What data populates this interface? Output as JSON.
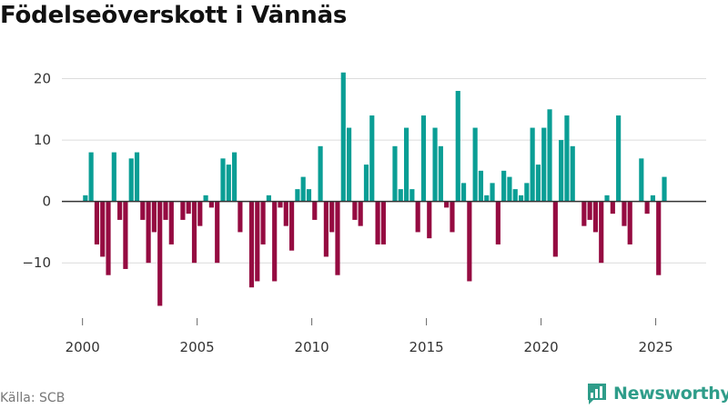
{
  "header": {
    "title": "Födelseöverskott i Vännäs"
  },
  "footer": {
    "source": "Källa: SCB",
    "brand": "Newsworthy"
  },
  "colors": {
    "positive": "#0a9e95",
    "negative": "#950b41",
    "grid": "#dcdcdc",
    "zero": "#333333",
    "brand": "#2f9d8a"
  },
  "chart_data": {
    "type": "bar",
    "title": "Födelseöverskott i Vännäs",
    "xlabel": "",
    "ylabel": "",
    "ylim": [
      -19,
      22
    ],
    "xlim": [
      1999.1,
      2027.2
    ],
    "yticks": [
      -10,
      0,
      10,
      20
    ],
    "ytick_labels": [
      "−10",
      "0",
      "10",
      "20"
    ],
    "xticks": [
      2000,
      2005,
      2010,
      2015,
      2020,
      2025
    ],
    "xtick_labels": [
      "2000",
      "2005",
      "2010",
      "2015",
      "2020",
      "2025"
    ],
    "frequency": "quarterly",
    "start_year": 2000,
    "start_quarter": 1,
    "values": [
      1,
      8,
      -7,
      -9,
      -12,
      8,
      -3,
      -11,
      7,
      8,
      -3,
      -10,
      -5,
      -17,
      -3,
      -7,
      0,
      -3,
      -2,
      -10,
      -4,
      1,
      -1,
      -10,
      7,
      6,
      8,
      -5,
      0,
      -14,
      -13,
      -7,
      1,
      -13,
      -1,
      -4,
      -8,
      2,
      4,
      2,
      -3,
      9,
      -9,
      -5,
      -12,
      21,
      12,
      -3,
      -4,
      6,
      14,
      -7,
      -7,
      0,
      9,
      2,
      12,
      2,
      -5,
      14,
      -6,
      12,
      9,
      -1,
      -5,
      18,
      3,
      -13,
      12,
      5,
      1,
      3,
      -7,
      5,
      4,
      2,
      1,
      3,
      12,
      6,
      12,
      15,
      -9,
      10,
      14,
      9,
      0,
      -4,
      -3,
      -5,
      -10,
      1,
      -2,
      14,
      -4,
      -7,
      0,
      7,
      -2,
      1,
      -12,
      4
    ]
  }
}
